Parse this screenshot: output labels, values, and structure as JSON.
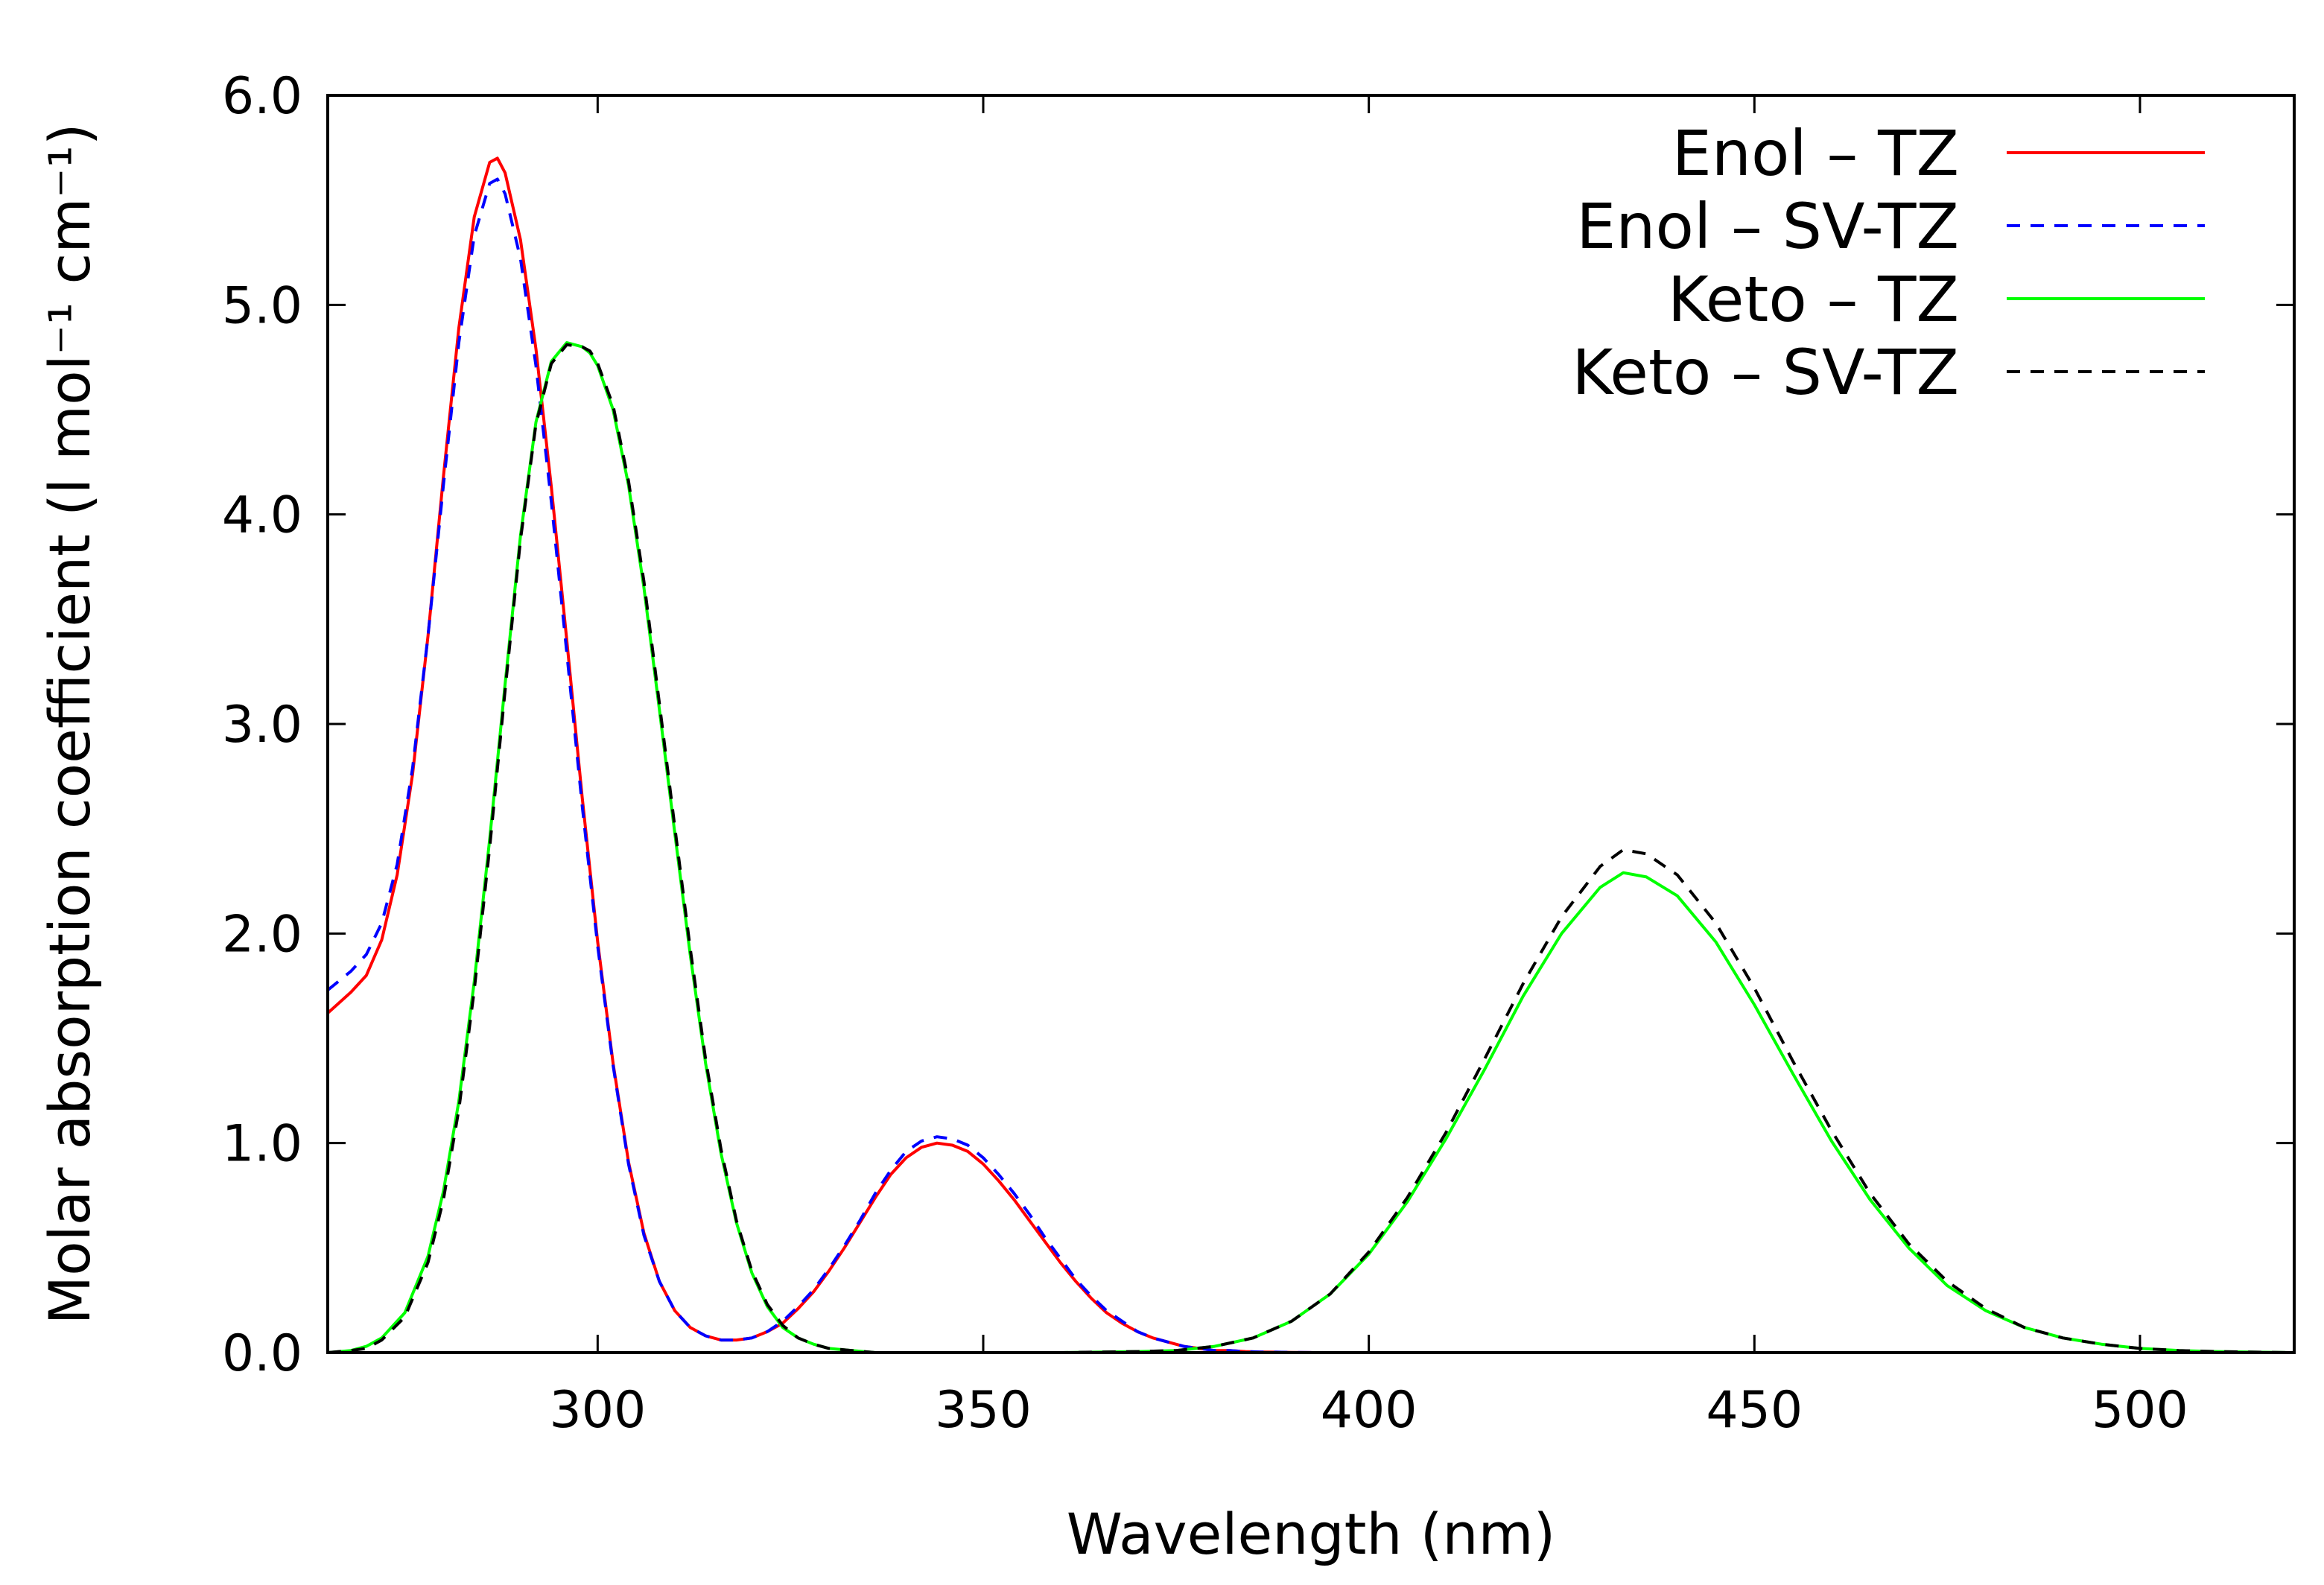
{
  "chart_data": {
    "type": "line",
    "title": "",
    "xlabel": "Wavelength (nm)",
    "ylabel": "Molar absorption coefficient (l mol⁻¹ cm⁻¹)",
    "xlim": [
      265,
      520
    ],
    "ylim": [
      0,
      6.0
    ],
    "grid": false,
    "legend_position": "top-right",
    "x_ticks": [
      300,
      350,
      400,
      450,
      500
    ],
    "x_tick_labels": [
      "300",
      "350",
      "400",
      "450",
      "500"
    ],
    "y_ticks": [
      0,
      1,
      2,
      3,
      4,
      5,
      6
    ],
    "y_tick_labels": [
      "0.0",
      "1.0",
      "2.0",
      "3.0",
      "4.0",
      "5.0",
      "6.0"
    ],
    "series": [
      {
        "name": "Enol – TZ",
        "color": "#ff0000",
        "dash": "solid",
        "x": [
          265,
          268,
          270,
          272,
          274,
          276,
          278,
          280,
          282,
          284,
          286,
          287,
          288,
          290,
          292,
          294,
          296,
          298,
          300,
          302,
          304,
          306,
          308,
          310,
          312,
          314,
          316,
          318,
          320,
          322,
          324,
          326,
          328,
          330,
          332,
          334,
          336,
          338,
          340,
          342,
          344,
          346,
          348,
          350,
          352,
          354,
          356,
          358,
          360,
          362,
          364,
          366,
          368,
          370,
          372,
          374,
          376,
          378,
          380,
          382,
          384,
          386,
          388,
          390,
          395,
          400,
          410,
          420,
          450,
          500,
          520
        ],
        "y": [
          1.62,
          1.72,
          1.8,
          1.97,
          2.28,
          2.76,
          3.42,
          4.18,
          4.89,
          5.42,
          5.68,
          5.7,
          5.63,
          5.31,
          4.79,
          4.13,
          3.4,
          2.65,
          1.96,
          1.38,
          0.91,
          0.57,
          0.34,
          0.2,
          0.12,
          0.08,
          0.06,
          0.06,
          0.07,
          0.1,
          0.14,
          0.21,
          0.29,
          0.39,
          0.5,
          0.62,
          0.74,
          0.85,
          0.93,
          0.98,
          1.0,
          0.99,
          0.96,
          0.9,
          0.82,
          0.73,
          0.63,
          0.53,
          0.43,
          0.34,
          0.26,
          0.19,
          0.14,
          0.1,
          0.07,
          0.05,
          0.03,
          0.02,
          0.01,
          0.01,
          0.005,
          0.003,
          0.002,
          0.001,
          0,
          0,
          0,
          0,
          0,
          0,
          0
        ]
      },
      {
        "name": "Enol – SV-TZ",
        "color": "#0000ff",
        "dash": "dashed",
        "x": [
          265,
          268,
          270,
          272,
          274,
          276,
          278,
          280,
          282,
          284,
          286,
          287,
          288,
          290,
          292,
          294,
          296,
          298,
          300,
          302,
          304,
          306,
          308,
          310,
          312,
          314,
          316,
          318,
          320,
          322,
          324,
          326,
          328,
          330,
          332,
          334,
          336,
          338,
          340,
          342,
          344,
          346,
          348,
          350,
          352,
          354,
          356,
          358,
          360,
          362,
          364,
          366,
          368,
          370,
          372,
          374,
          376,
          378,
          380,
          382,
          384,
          386,
          388,
          390,
          395,
          400,
          410,
          420,
          450,
          500,
          520
        ],
        "y": [
          1.73,
          1.82,
          1.9,
          2.05,
          2.33,
          2.79,
          3.42,
          4.14,
          4.82,
          5.33,
          5.58,
          5.6,
          5.53,
          5.22,
          4.71,
          4.06,
          3.34,
          2.61,
          1.94,
          1.37,
          0.9,
          0.56,
          0.34,
          0.2,
          0.12,
          0.08,
          0.06,
          0.06,
          0.07,
          0.1,
          0.15,
          0.22,
          0.3,
          0.4,
          0.51,
          0.63,
          0.76,
          0.87,
          0.96,
          1.01,
          1.03,
          1.02,
          0.99,
          0.93,
          0.85,
          0.76,
          0.66,
          0.55,
          0.45,
          0.35,
          0.27,
          0.2,
          0.15,
          0.1,
          0.07,
          0.05,
          0.03,
          0.02,
          0.01,
          0.01,
          0.005,
          0.003,
          0.002,
          0.001,
          0,
          0,
          0,
          0,
          0,
          0,
          0
        ]
      },
      {
        "name": "Keto – TZ",
        "color": "#00ff00",
        "dash": "solid",
        "x": [
          265,
          268,
          270,
          272,
          275,
          278,
          280,
          282,
          284,
          286,
          288,
          290,
          292,
          294,
          296,
          298,
          299,
          300,
          302,
          304,
          306,
          308,
          310,
          312,
          314,
          316,
          318,
          320,
          322,
          324,
          326,
          328,
          330,
          333,
          336,
          340,
          345,
          350,
          360,
          370,
          375,
          380,
          385,
          390,
          395,
          400,
          405,
          410,
          415,
          420,
          425,
          430,
          433,
          436,
          440,
          445,
          450,
          455,
          460,
          465,
          470,
          475,
          480,
          485,
          490,
          495,
          500,
          505,
          510,
          515,
          520
        ],
        "y": [
          0,
          0.01,
          0.03,
          0.07,
          0.19,
          0.46,
          0.77,
          1.2,
          1.77,
          2.45,
          3.19,
          3.9,
          4.44,
          4.73,
          4.82,
          4.8,
          4.77,
          4.71,
          4.5,
          4.14,
          3.65,
          3.07,
          2.48,
          1.9,
          1.38,
          0.95,
          0.62,
          0.38,
          0.22,
          0.12,
          0.07,
          0.04,
          0.02,
          0.01,
          0,
          0,
          0,
          0,
          0,
          0.005,
          0.01,
          0.03,
          0.07,
          0.15,
          0.28,
          0.47,
          0.72,
          1.02,
          1.35,
          1.7,
          2.0,
          2.22,
          2.29,
          2.27,
          2.18,
          1.96,
          1.66,
          1.33,
          1.01,
          0.73,
          0.5,
          0.32,
          0.2,
          0.12,
          0.07,
          0.04,
          0.02,
          0.01,
          0.005,
          0.002,
          0
        ]
      },
      {
        "name": "Keto – SV-TZ",
        "color": "#000000",
        "dash": "dashed",
        "x": [
          265,
          268,
          270,
          272,
          275,
          278,
          280,
          282,
          284,
          286,
          288,
          290,
          292,
          294,
          296,
          298,
          299,
          300,
          302,
          304,
          306,
          308,
          310,
          312,
          314,
          316,
          318,
          320,
          322,
          324,
          326,
          328,
          330,
          333,
          336,
          340,
          345,
          350,
          360,
          370,
          375,
          380,
          385,
          390,
          395,
          400,
          405,
          410,
          415,
          420,
          425,
          430,
          433,
          436,
          440,
          445,
          450,
          455,
          460,
          465,
          470,
          475,
          480,
          485,
          490,
          495,
          500,
          505,
          510,
          515,
          520
        ],
        "y": [
          0,
          0.01,
          0.02,
          0.06,
          0.17,
          0.43,
          0.73,
          1.16,
          1.73,
          2.41,
          3.16,
          3.88,
          4.43,
          4.72,
          4.81,
          4.8,
          4.78,
          4.72,
          4.52,
          4.16,
          3.68,
          3.1,
          2.51,
          1.93,
          1.4,
          0.97,
          0.63,
          0.39,
          0.23,
          0.13,
          0.07,
          0.04,
          0.02,
          0.01,
          0,
          0,
          0,
          0,
          0,
          0.005,
          0.01,
          0.03,
          0.07,
          0.15,
          0.28,
          0.48,
          0.74,
          1.05,
          1.4,
          1.76,
          2.08,
          2.32,
          2.4,
          2.38,
          2.28,
          2.05,
          1.74,
          1.39,
          1.06,
          0.76,
          0.52,
          0.34,
          0.21,
          0.12,
          0.07,
          0.04,
          0.02,
          0.01,
          0.005,
          0.002,
          0
        ]
      }
    ]
  }
}
